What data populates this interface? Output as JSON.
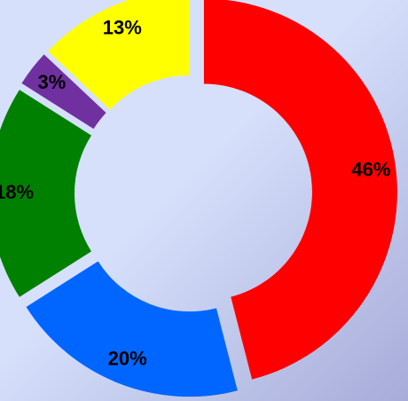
{
  "chart_data": {
    "type": "pie",
    "style": "exploded-donut",
    "title": "",
    "slices": [
      {
        "label": "46%",
        "value": 46,
        "color": "#ff0000"
      },
      {
        "label": "20%",
        "value": 20,
        "color": "#0066ff"
      },
      {
        "label": "18%",
        "value": 18,
        "color": "#008000"
      },
      {
        "label": "3%",
        "value": 3,
        "color": "#7030a0"
      },
      {
        "label": "13%",
        "value": 13,
        "color": "#ffff00"
      }
    ],
    "background": {
      "from": "#d6e0fb",
      "to": "#a7acd9"
    },
    "legend": "none"
  }
}
